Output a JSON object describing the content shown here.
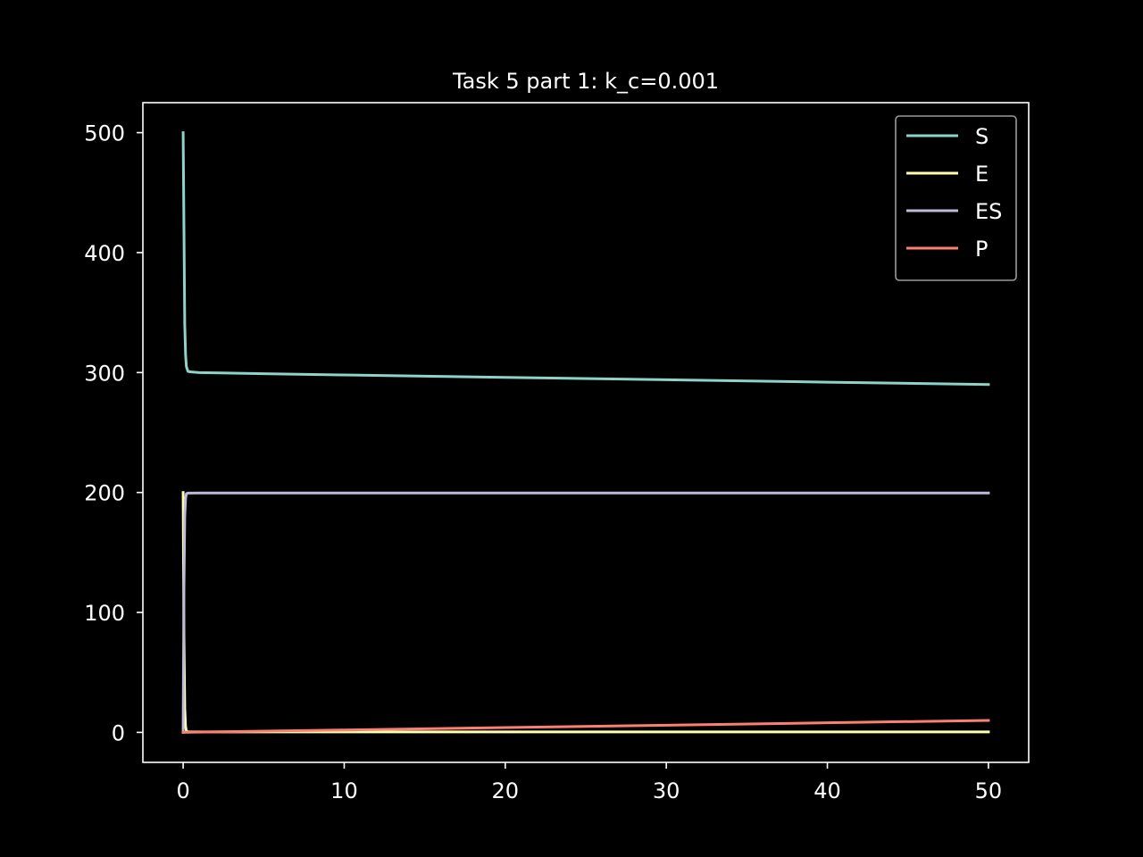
{
  "chart_data": {
    "type": "line",
    "title": "Task 5 part 1: k_c=0.001",
    "xlabel": "",
    "ylabel": "",
    "xlim": [
      -2.5,
      52.5
    ],
    "ylim": [
      -25,
      525
    ],
    "xticks": [
      0,
      10,
      20,
      30,
      40,
      50
    ],
    "yticks": [
      0,
      100,
      200,
      300,
      400,
      500
    ],
    "xtick_labels": [
      "0",
      "10",
      "20",
      "30",
      "40",
      "50"
    ],
    "ytick_labels": [
      "0",
      "100",
      "200",
      "300",
      "400",
      "500"
    ],
    "grid": false,
    "legend_position": "top-right",
    "background": "#000000",
    "foreground": "#ffffff",
    "series": [
      {
        "name": "S",
        "color": "#8dd3c7",
        "x": [
          0,
          0.05,
          0.1,
          0.15,
          0.2,
          0.3,
          0.5,
          1,
          5,
          10,
          20,
          30,
          40,
          50
        ],
        "y": [
          500,
          420,
          340,
          315,
          305,
          301,
          300.5,
          300,
          299,
          298,
          296,
          294,
          292,
          290
        ]
      },
      {
        "name": "E",
        "color": "#ffffb3",
        "x": [
          0,
          0.02,
          0.05,
          0.1,
          0.15,
          0.2,
          0.3,
          1,
          10,
          20,
          30,
          40,
          50
        ],
        "y": [
          200,
          150,
          80,
          20,
          5,
          1,
          0.5,
          0.4,
          0.4,
          0.4,
          0.4,
          0.4,
          0.4
        ]
      },
      {
        "name": "ES",
        "color": "#bebada",
        "x": [
          0,
          0.02,
          0.05,
          0.1,
          0.15,
          0.2,
          0.3,
          1,
          10,
          20,
          30,
          40,
          50
        ],
        "y": [
          0,
          50,
          120,
          180,
          195,
          199,
          199.5,
          199.6,
          199.6,
          199.6,
          199.6,
          199.6,
          199.6
        ]
      },
      {
        "name": "P",
        "color": "#fb8072",
        "x": [
          0,
          10,
          20,
          30,
          40,
          50
        ],
        "y": [
          0,
          2,
          4,
          6,
          8,
          10
        ]
      }
    ]
  }
}
